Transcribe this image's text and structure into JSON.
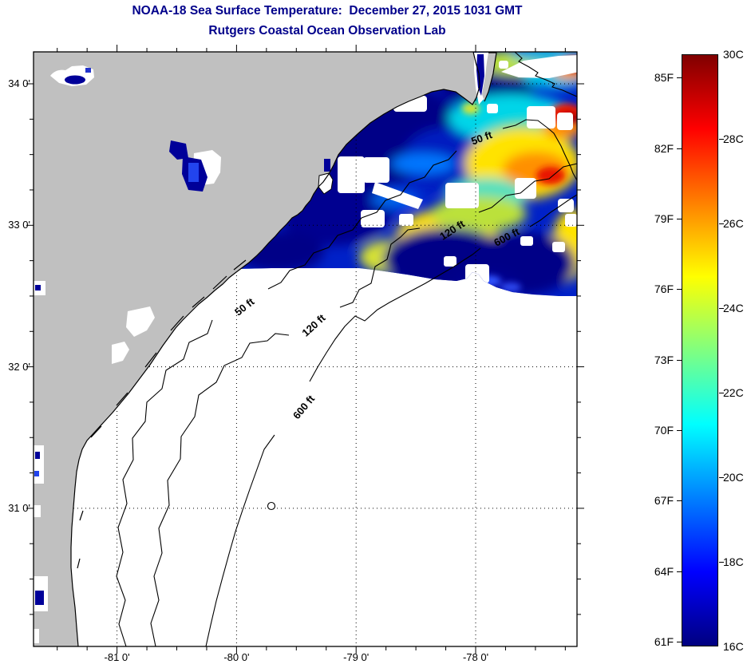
{
  "title": {
    "line1": "NOAA-18 Sea Surface Temperature:  December 27, 2015 1031 GMT",
    "line2": "Rutgers Coastal Ocean Observation Lab",
    "color": "#00008B"
  },
  "map": {
    "land_color": "#C0C0C0",
    "nodata_color": "#FFFFFF",
    "lon_axis": {
      "minor_step_deg": 0.25,
      "ticks": [
        {
          "deg": -81,
          "label": "-81 0'"
        },
        {
          "deg": -80,
          "label": "-80 0'"
        },
        {
          "deg": -79,
          "label": "-79 0'"
        },
        {
          "deg": -78,
          "label": "-78 0'"
        }
      ]
    },
    "lat_axis": {
      "minor_step_deg": 0.25,
      "ticks": [
        {
          "deg": 34,
          "label": "34 0'"
        },
        {
          "deg": 33,
          "label": "33 0'"
        },
        {
          "deg": 32,
          "label": "32 0'"
        },
        {
          "deg": 31,
          "label": "31 0'"
        }
      ]
    },
    "graticule": {
      "lons": [
        -81,
        -80,
        -79,
        -78
      ],
      "lats": [
        34,
        33,
        32,
        31
      ]
    },
    "contour_labels": [
      {
        "text": "50 ft",
        "depth_ft": 50
      },
      {
        "text": "120 ft",
        "depth_ft": 120
      },
      {
        "text": "600 ft",
        "depth_ft": 600
      },
      {
        "text": "50 ft",
        "depth_ft": 50
      },
      {
        "text": "120 ft",
        "depth_ft": 120
      },
      {
        "text": "600 ft",
        "depth_ft": 600
      }
    ]
  },
  "colorbar": {
    "min_c": 16,
    "max_c": 30,
    "gradient": [
      "#800000",
      "#FF0000",
      "#FF8000",
      "#FFFF00",
      "#80FF80",
      "#00FFFF",
      "#0080FF",
      "#0000FF",
      "#000080"
    ],
    "celsius_ticks": [
      {
        "c": 30,
        "label": "30C"
      },
      {
        "c": 28,
        "label": "28C"
      },
      {
        "c": 26,
        "label": "26C"
      },
      {
        "c": 24,
        "label": "24C"
      },
      {
        "c": 22,
        "label": "22C"
      },
      {
        "c": 20,
        "label": "20C"
      },
      {
        "c": 18,
        "label": "18C"
      },
      {
        "c": 16,
        "label": "16C"
      }
    ],
    "fahrenheit_ticks": [
      {
        "f": 85,
        "label": "85F"
      },
      {
        "f": 82,
        "label": "82F"
      },
      {
        "f": 79,
        "label": "79F"
      },
      {
        "f": 76,
        "label": "76F"
      },
      {
        "f": 73,
        "label": "73F"
      },
      {
        "f": 70,
        "label": "70F"
      },
      {
        "f": 67,
        "label": "67F"
      },
      {
        "f": 64,
        "label": "64F"
      },
      {
        "f": 61,
        "label": "61F"
      }
    ]
  },
  "chart_data": {
    "type": "heatmap",
    "title": "NOAA-18 Sea Surface Temperature:  December 27, 2015 1031 GMT",
    "subtitle": "Rutgers Coastal Ocean Observation Lab",
    "x_axis": {
      "quantity": "longitude",
      "tick_labels": [
        "-81 0'",
        "-80 0'",
        "-79 0'",
        "-78 0'"
      ],
      "range_deg": [
        -81.7,
        -77.2
      ]
    },
    "y_axis": {
      "quantity": "latitude",
      "tick_labels": [
        "34 0'",
        "33 0'",
        "32 0'",
        "31 0'"
      ],
      "range_deg": [
        30.0,
        34.25
      ]
    },
    "colorbar": {
      "celsius_range": [
        16,
        30
      ],
      "fahrenheit_labels": [
        "85F",
        "82F",
        "79F",
        "76F",
        "73F",
        "70F",
        "67F",
        "64F",
        "61F"
      ],
      "celsius_labels": [
        "30C",
        "28C",
        "26C",
        "24C",
        "22C",
        "20C",
        "18C",
        "16C"
      ],
      "colormap": "jet"
    },
    "bathymetry_contour_levels_ft": [
      50,
      120,
      600
    ],
    "legend_position": "right"
  }
}
